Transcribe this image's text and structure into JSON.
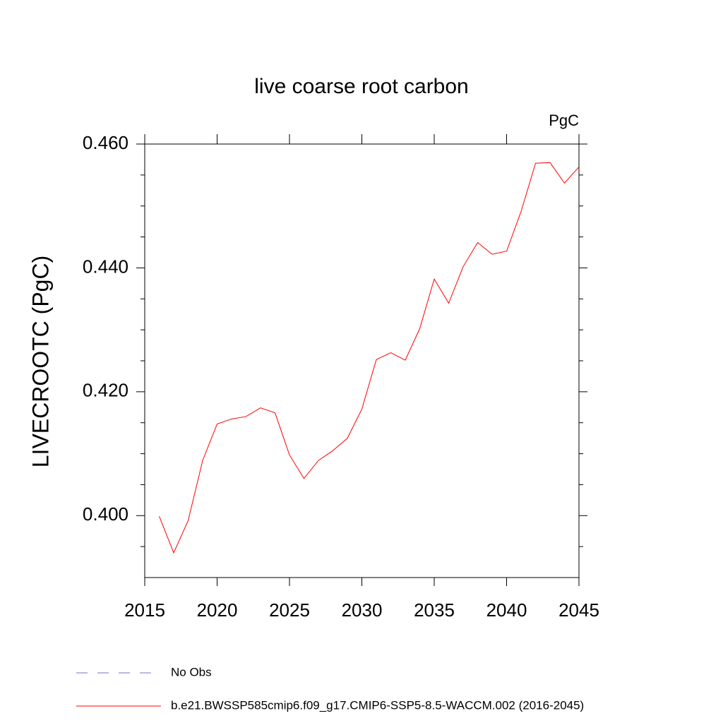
{
  "chart_data": {
    "type": "line",
    "title": "live coarse root carbon",
    "units": "PgC",
    "y_label": "LIVECROOTC  (PgC)",
    "x": [
      2016,
      2017,
      2018,
      2019,
      2020,
      2021,
      2022,
      2023,
      2024,
      2025,
      2026,
      2027,
      2028,
      2029,
      2030,
      2031,
      2032,
      2033,
      2034,
      2035,
      2036,
      2037,
      2038,
      2039,
      2040,
      2041,
      2042,
      2043,
      2044,
      2045
    ],
    "series": [
      {
        "name": "b.e21.BWSSP585cmip6.f09_g17.CMIP6-SSP5-8.5-WACCM.002 (2016-2045)",
        "color": "#ff0000",
        "values": [
          0.3999,
          0.394,
          0.3992,
          0.4089,
          0.4148,
          0.4156,
          0.416,
          0.4174,
          0.4166,
          0.4098,
          0.406,
          0.4089,
          0.4105,
          0.4125,
          0.4172,
          0.4252,
          0.4263,
          0.4251,
          0.4302,
          0.4382,
          0.4343,
          0.4402,
          0.4441,
          0.4422,
          0.4427,
          0.4491,
          0.4569,
          0.457,
          0.4537,
          0.4563
        ]
      }
    ],
    "legend_entries": [
      {
        "name": "No Obs",
        "color": "#7b6fc4",
        "dashed": true
      },
      {
        "name": "b.e21.BWSSP585cmip6.f09_g17.CMIP6-SSP5-8.5-WACCM.002 (2016-2045)",
        "color": "#ff0000",
        "dashed": false
      }
    ],
    "xlim": [
      2015,
      2045
    ],
    "xticks": [
      2015,
      2020,
      2025,
      2030,
      2035,
      2040,
      2045
    ],
    "ylim": [
      0.39,
      0.46
    ],
    "yticks": [
      {
        "value": 0.4,
        "label": "0.400"
      },
      {
        "value": 0.42,
        "label": "0.420"
      },
      {
        "value": 0.44,
        "label": "0.440"
      },
      {
        "value": 0.46,
        "label": "0.460"
      }
    ],
    "yminorticks": [
      0.395,
      0.405,
      0.41,
      0.415,
      0.425,
      0.43,
      0.435,
      0.445,
      0.45,
      0.455
    ]
  }
}
